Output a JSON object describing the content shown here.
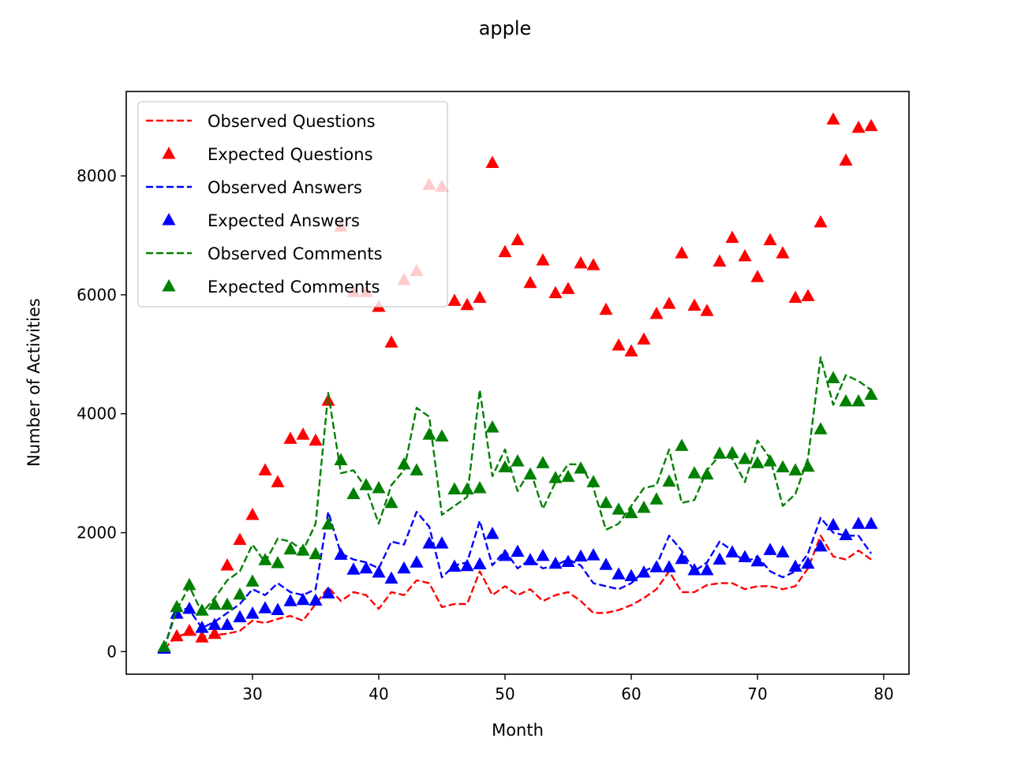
{
  "chart_data": {
    "type": "line",
    "title": "apple",
    "xlabel": "Month",
    "ylabel": "Number of Activities",
    "xlim": [
      20,
      82
    ],
    "ylim": [
      -380,
      9420
    ],
    "xticks": [
      30,
      40,
      50,
      60,
      70,
      80
    ],
    "yticks": [
      0,
      2000,
      4000,
      6000,
      8000
    ],
    "grid": false,
    "legend_position": "upper-left",
    "x": [
      23,
      24,
      25,
      26,
      27,
      28,
      29,
      30,
      31,
      32,
      33,
      34,
      35,
      36,
      37,
      38,
      39,
      40,
      41,
      42,
      43,
      44,
      45,
      46,
      47,
      48,
      49,
      50,
      51,
      52,
      53,
      54,
      55,
      56,
      57,
      58,
      59,
      60,
      61,
      62,
      63,
      64,
      65,
      66,
      67,
      68,
      69,
      70,
      71,
      72,
      73,
      74,
      75,
      76,
      77,
      78,
      79
    ],
    "series": [
      {
        "name": "Observed Questions",
        "style": "dashed",
        "color": "#ff0000",
        "values": [
          50,
          250,
          320,
          250,
          280,
          300,
          350,
          520,
          480,
          550,
          600,
          520,
          800,
          1080,
          850,
          1000,
          950,
          720,
          1000,
          950,
          1200,
          1150,
          750,
          800,
          800,
          1350,
          950,
          1100,
          950,
          1050,
          850,
          950,
          1000,
          850,
          650,
          650,
          700,
          780,
          900,
          1050,
          1350,
          1000,
          1000,
          1120,
          1150,
          1150,
          1050,
          1100,
          1100,
          1050,
          1100,
          1400,
          1950,
          1600,
          1550,
          1700,
          1550
        ]
      },
      {
        "name": "Expected Questions",
        "style": "marker",
        "color": "#ff0000",
        "values": [
          60,
          260,
          350,
          240,
          300,
          1450,
          1880,
          2300,
          3050,
          2850,
          3580,
          3650,
          3550,
          4220,
          7150,
          6050,
          6050,
          5800,
          5200,
          6250,
          6400,
          7850,
          7820,
          5900,
          5830,
          5950,
          8220,
          6720,
          6920,
          6200,
          6580,
          6030,
          6100,
          6530,
          6500,
          5750,
          5150,
          5050,
          5250,
          5680,
          5850,
          6700,
          5820,
          5730,
          6560,
          6960,
          6650,
          6300,
          6920,
          6700,
          5950,
          5980,
          7220,
          8950,
          8260,
          8810,
          8840
        ]
      },
      {
        "name": "Observed Answers",
        "style": "dashed",
        "color": "#0000ff",
        "values": [
          50,
          750,
          700,
          400,
          500,
          650,
          800,
          1050,
          950,
          1150,
          1000,
          950,
          1050,
          2350,
          1650,
          1550,
          1500,
          1400,
          1850,
          1800,
          2350,
          2100,
          1250,
          1450,
          1500,
          2200,
          1450,
          1700,
          1400,
          1550,
          1400,
          1450,
          1550,
          1450,
          1150,
          1100,
          1050,
          1150,
          1350,
          1450,
          1950,
          1700,
          1350,
          1500,
          1850,
          1700,
          1500,
          1600,
          1350,
          1250,
          1350,
          1650,
          2250,
          2000,
          1950,
          1950,
          1650
        ]
      },
      {
        "name": "Expected Answers",
        "style": "marker",
        "color": "#0000ff",
        "values": [
          50,
          640,
          720,
          400,
          450,
          450,
          580,
          640,
          730,
          700,
          850,
          870,
          860,
          980,
          1630,
          1380,
          1400,
          1330,
          1230,
          1400,
          1500,
          1820,
          1820,
          1430,
          1440,
          1470,
          1980,
          1610,
          1680,
          1540,
          1610,
          1480,
          1510,
          1600,
          1620,
          1460,
          1300,
          1270,
          1330,
          1420,
          1420,
          1560,
          1370,
          1370,
          1550,
          1670,
          1590,
          1520,
          1710,
          1670,
          1430,
          1480,
          1770,
          2130,
          1960,
          2150,
          2150
        ]
      },
      {
        "name": "Observed Comments",
        "style": "dashed",
        "color": "#008000",
        "values": [
          50,
          700,
          1100,
          650,
          900,
          1200,
          1350,
          1800,
          1500,
          1900,
          1850,
          1700,
          2150,
          4350,
          3000,
          3050,
          2750,
          2150,
          2800,
          3050,
          4100,
          3950,
          2300,
          2450,
          2600,
          4400,
          2950,
          3400,
          2700,
          3050,
          2400,
          2850,
          3150,
          3150,
          2750,
          2050,
          2150,
          2450,
          2750,
          2800,
          3400,
          2500,
          2550,
          3050,
          3300,
          3250,
          2850,
          3550,
          3250,
          2450,
          2650,
          3250,
          4950,
          4150,
          4650,
          4550,
          4400
        ]
      },
      {
        "name": "Expected Comments",
        "style": "marker",
        "color": "#008000",
        "values": [
          80,
          750,
          1120,
          690,
          790,
          790,
          960,
          1180,
          1540,
          1490,
          1720,
          1700,
          1640,
          2140,
          3220,
          2650,
          2800,
          2750,
          2500,
          3150,
          3050,
          3650,
          3620,
          2730,
          2730,
          2750,
          3770,
          3100,
          3200,
          2980,
          3170,
          2920,
          2940,
          3080,
          2850,
          2500,
          2390,
          2330,
          2420,
          2560,
          2860,
          3460,
          3000,
          2980,
          3330,
          3340,
          3240,
          3170,
          3200,
          3100,
          3050,
          3110,
          3740,
          4600,
          4210,
          4210,
          4320
        ]
      }
    ]
  }
}
